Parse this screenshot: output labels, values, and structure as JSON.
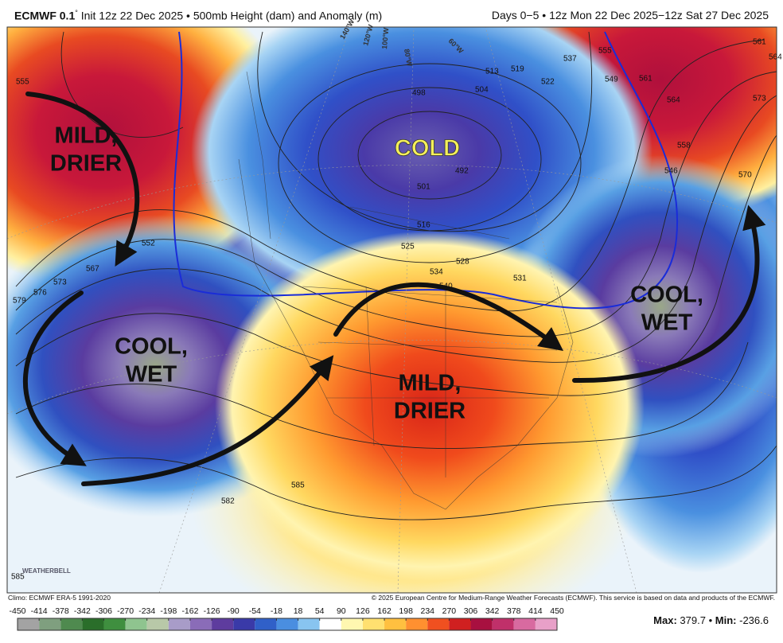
{
  "header": {
    "title": "ECMWF 0.1",
    "title_mark": "°",
    "subtitle": "Init 12z 22 Dec 2025 • 500mb Height (dam) and Anomaly (m)",
    "period": "Days 0−5 • 12z Mon 22 Dec 2025−12z Sat 27 Dec 2025"
  },
  "map": {
    "annotations": [
      {
        "lines": [
          "MILD,",
          "DRIER"
        ],
        "color": "#111111"
      },
      {
        "lines": [
          "COLD"
        ],
        "color": "#f4ef5a"
      },
      {
        "lines": [
          "COOL,",
          "WET"
        ],
        "color": "#111111"
      },
      {
        "lines": [
          "MILD,",
          "DRIER"
        ],
        "color": "#111111"
      },
      {
        "lines": [
          "COOL,",
          "WET"
        ],
        "color": "#111111"
      }
    ],
    "longitude_labels": [
      "140°W",
      "120°W",
      "100°W",
      "80°W",
      "60°W"
    ],
    "contour_labels": [
      555,
      552,
      567,
      576,
      573,
      579,
      498,
      504,
      513,
      519,
      522,
      537,
      555,
      549,
      561,
      564,
      558,
      546,
      570,
      573,
      561,
      564,
      492,
      501,
      516,
      525,
      528,
      531,
      534,
      540,
      582,
      585,
      585
    ],
    "logo": "WEATHERBELL"
  },
  "footer": {
    "climo": "Climo: ECMWF ERA-5 1991-2020",
    "copyright": "© 2025 European Centre for Medium-Range Weather Forecasts (ECMWF). This service is based on data and products of the ECMWF.",
    "colorbar": {
      "ticks": [
        -450,
        -414,
        -378,
        -342,
        -306,
        -270,
        -234,
        -198,
        -162,
        -126,
        -90,
        -54,
        -18,
        18,
        54,
        90,
        126,
        162,
        198,
        234,
        270,
        306,
        342,
        378,
        414,
        450
      ],
      "colors": [
        "#a3a3a3",
        "#7f9f7f",
        "#4f8a4f",
        "#2a6e2a",
        "#3f8f3f",
        "#8fc48f",
        "#b8c8a8",
        "#a89cc8",
        "#8a6cb8",
        "#5e3c9e",
        "#3a3aa8",
        "#3060c8",
        "#4a8ee0",
        "#88c4f0",
        "#ffffff",
        "#fff7b0",
        "#ffe070",
        "#ffc040",
        "#ff9030",
        "#f05020",
        "#d02020",
        "#a81040",
        "#c0306a",
        "#d86aa0",
        "#e8a0c8"
      ]
    },
    "max_label": "Max:",
    "max": 379.7,
    "separator": "•",
    "min_label": "Min:",
    "min": -236.6
  }
}
